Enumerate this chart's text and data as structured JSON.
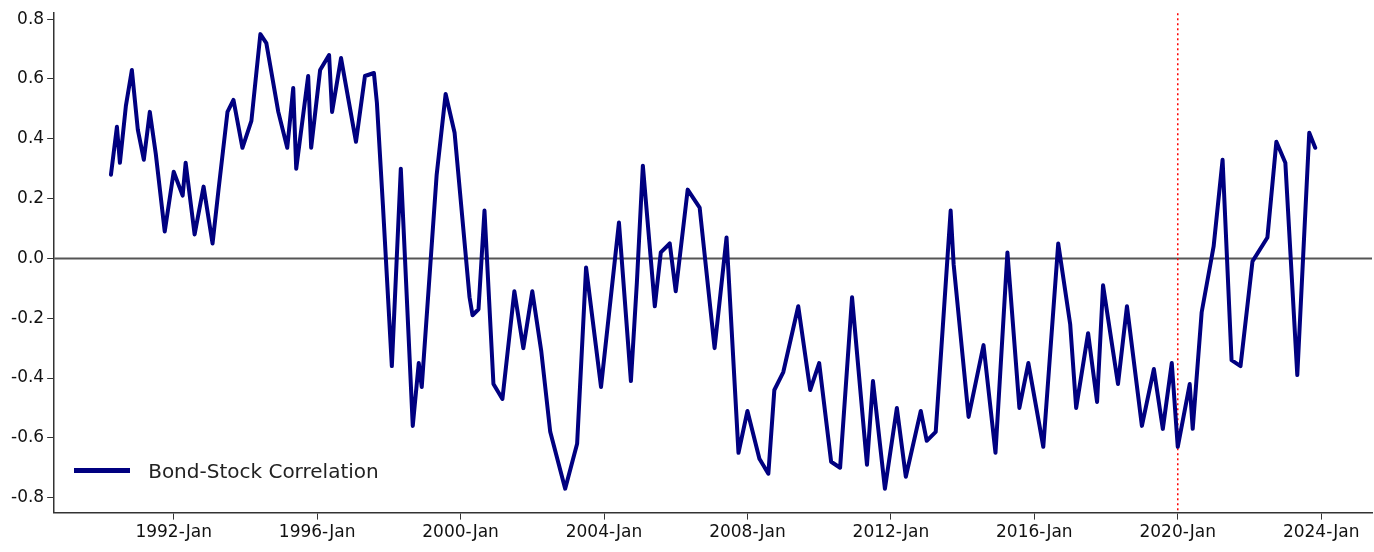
{
  "chart_data": {
    "type": "line",
    "xlim": [
      "1988-09",
      "2025-06"
    ],
    "xticks": [
      {
        "value": "1992-01",
        "label": "1992-Jan"
      },
      {
        "value": "1996-01",
        "label": "1996-Jan"
      },
      {
        "value": "2000-01",
        "label": "2000-Jan"
      },
      {
        "value": "2004-01",
        "label": "2004-Jan"
      },
      {
        "value": "2008-01",
        "label": "2008-Jan"
      },
      {
        "value": "2012-01",
        "label": "2012-Jan"
      },
      {
        "value": "2016-01",
        "label": "2016-Jan"
      },
      {
        "value": "2020-01",
        "label": "2020-Jan"
      },
      {
        "value": "2024-01",
        "label": "2024-Jan"
      }
    ],
    "ylim": [
      -0.85,
      0.82
    ],
    "yticks": [
      {
        "value": -0.8,
        "label": "-0.8"
      },
      {
        "value": -0.6,
        "label": "-0.6"
      },
      {
        "value": -0.4,
        "label": "-0.4"
      },
      {
        "value": -0.2,
        "label": "-0.2"
      },
      {
        "value": 0,
        "label": "0.0"
      },
      {
        "value": 0.2,
        "label": "0.2"
      },
      {
        "value": 0.4,
        "label": "0.4"
      },
      {
        "value": 0.6,
        "label": "0.6"
      },
      {
        "value": 0.8,
        "label": "0.8"
      }
    ],
    "grid": false,
    "legend": "bottom left",
    "line_style": "solid",
    "marker": "none",
    "ref_lines": [
      {
        "axis": "y",
        "value": 0,
        "color": "#555555",
        "line_style": "solid"
      },
      {
        "axis": "x",
        "value": "2020-01",
        "color": "#ff0000",
        "line_style": "dotted"
      }
    ],
    "series": [
      {
        "name": "Bond-Stock Correlation",
        "color": "#000080",
        "x": [
          "1990-04",
          "1990-06",
          "1990-07",
          "1990-09",
          "1990-11",
          "1991-01",
          "1991-03",
          "1991-05",
          "1991-07",
          "1991-10",
          "1992-01",
          "1992-04",
          "1992-05",
          "1992-08",
          "1992-11",
          "1993-02",
          "1993-04",
          "1993-07",
          "1993-09",
          "1993-12",
          "1994-03",
          "1994-06",
          "1994-08",
          "1994-12",
          "1995-03",
          "1995-05",
          "1995-06",
          "1995-10",
          "1995-11",
          "1996-02",
          "1996-05",
          "1996-06",
          "1996-09",
          "1997-02",
          "1997-05",
          "1997-08",
          "1997-09",
          "1997-11",
          "1998-02",
          "1998-05",
          "1998-09",
          "1998-11",
          "1998-12",
          "1999-05",
          "1999-08",
          "1999-11",
          "2000-04",
          "2000-05",
          "2000-07",
          "2000-09",
          "2000-12",
          "2001-03",
          "2001-07",
          "2001-10",
          "2002-01",
          "2002-04",
          "2002-07",
          "2002-12",
          "2003-04",
          "2003-07",
          "2003-12",
          "2004-06",
          "2004-10",
          "2004-12",
          "2005-02",
          "2005-06",
          "2005-08",
          "2005-11",
          "2006-01",
          "2006-05",
          "2006-09",
          "2007-02",
          "2007-06",
          "2007-10",
          "2008-01",
          "2008-05",
          "2008-08",
          "2008-10",
          "2009-01",
          "2009-06",
          "2009-10",
          "2010-01",
          "2010-05",
          "2010-08",
          "2010-12",
          "2011-05",
          "2011-07",
          "2011-11",
          "2012-03",
          "2012-06",
          "2012-11",
          "2013-01",
          "2013-04",
          "2013-09",
          "2013-10",
          "2014-03",
          "2014-08",
          "2014-12",
          "2015-04",
          "2015-08",
          "2015-11",
          "2016-04",
          "2016-09",
          "2017-01",
          "2017-03",
          "2017-07",
          "2017-10",
          "2017-12",
          "2018-05",
          "2018-08",
          "2019-01",
          "2019-05",
          "2019-08",
          "2019-11",
          "2020-01",
          "2020-05",
          "2020-06",
          "2020-09",
          "2021-01",
          "2021-04",
          "2021-07",
          "2021-10",
          "2022-02",
          "2022-07",
          "2022-10",
          "2023-01",
          "2023-05",
          "2023-09",
          "2023-11"
        ],
        "values": [
          0.28,
          0.44,
          0.32,
          0.51,
          0.63,
          0.43,
          0.33,
          0.49,
          0.35,
          0.09,
          0.29,
          0.21,
          0.32,
          0.08,
          0.24,
          0.05,
          0.23,
          0.49,
          0.53,
          0.37,
          0.46,
          0.75,
          0.72,
          0.49,
          0.37,
          0.57,
          0.3,
          0.61,
          0.37,
          0.63,
          0.68,
          0.49,
          0.67,
          0.39,
          0.61,
          0.62,
          0.52,
          0.18,
          -0.36,
          0.3,
          -0.56,
          -0.35,
          -0.43,
          0.28,
          0.55,
          0.42,
          -0.13,
          -0.19,
          -0.17,
          0.16,
          -0.42,
          -0.47,
          -0.11,
          -0.3,
          -0.11,
          -0.31,
          -0.58,
          -0.77,
          -0.62,
          -0.03,
          -0.43,
          0.12,
          -0.41,
          -0.08,
          0.31,
          -0.16,
          0.02,
          0.05,
          -0.11,
          0.23,
          0.17,
          -0.3,
          0.07,
          -0.65,
          -0.51,
          -0.67,
          -0.72,
          -0.44,
          -0.38,
          -0.16,
          -0.44,
          -0.35,
          -0.68,
          -0.7,
          -0.13,
          -0.69,
          -0.41,
          -0.77,
          -0.5,
          -0.73,
          -0.51,
          -0.61,
          -0.58,
          0.16,
          -0.02,
          -0.53,
          -0.29,
          -0.65,
          0.02,
          -0.5,
          -0.35,
          -0.63,
          0.05,
          -0.22,
          -0.5,
          -0.25,
          -0.48,
          -0.09,
          -0.42,
          -0.16,
          -0.56,
          -0.37,
          -0.57,
          -0.35,
          -0.63,
          -0.42,
          -0.57,
          -0.18,
          0.04,
          0.33,
          -0.34,
          -0.36,
          -0.01,
          0.07,
          0.39,
          0.32,
          -0.39,
          0.42,
          0.37
        ]
      }
    ]
  }
}
